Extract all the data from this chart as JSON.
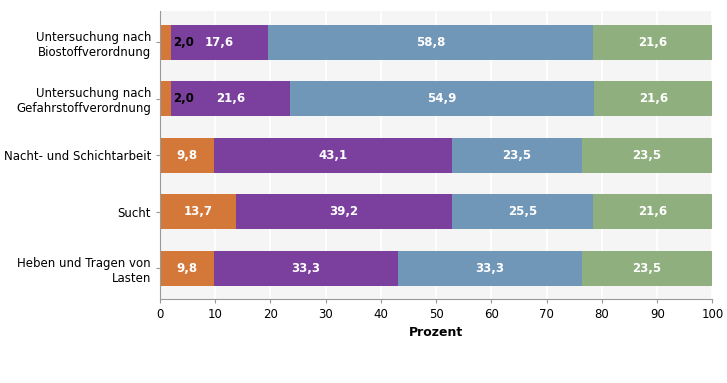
{
  "categories": [
    "Untersuchung nach\nBiostoffverordnung",
    "Untersuchung nach\nGefahrstoffverordnung",
    "Nacht- und Schichtarbeit",
    "Sucht",
    "Heben und Tragen von\nLasten"
  ],
  "series": {
    "ja": [
      2.0,
      2.0,
      9.8,
      13.7,
      9.8
    ],
    "nein": [
      17.6,
      21.6,
      43.1,
      39.2,
      33.3
    ],
    "nicht erforderlich": [
      58.8,
      54.9,
      23.5,
      25.5,
      33.3
    ],
    "keine Angabe": [
      21.6,
      21.6,
      23.5,
      21.6,
      23.5
    ]
  },
  "colors": {
    "ja": "#D4783A",
    "nein": "#7B3F9E",
    "nicht erforderlich": "#7096B8",
    "keine Angabe": "#8FAF7E"
  },
  "xlabel": "Prozent",
  "xlim": [
    0,
    100
  ],
  "xticks": [
    0,
    10,
    20,
    30,
    40,
    50,
    60,
    70,
    80,
    90,
    100
  ],
  "bar_height": 0.62,
  "background_color": "#ffffff",
  "plot_background": "#f5f5f5",
  "label_fontsize": 8.5,
  "tick_fontsize": 8.5,
  "xlabel_fontsize": 9,
  "legend_fontsize": 9,
  "value_fontsize": 8.5,
  "value_color": "#ffffff",
  "grid_color": "#ffffff",
  "spine_color": "#999999",
  "small_threshold": 5.0
}
